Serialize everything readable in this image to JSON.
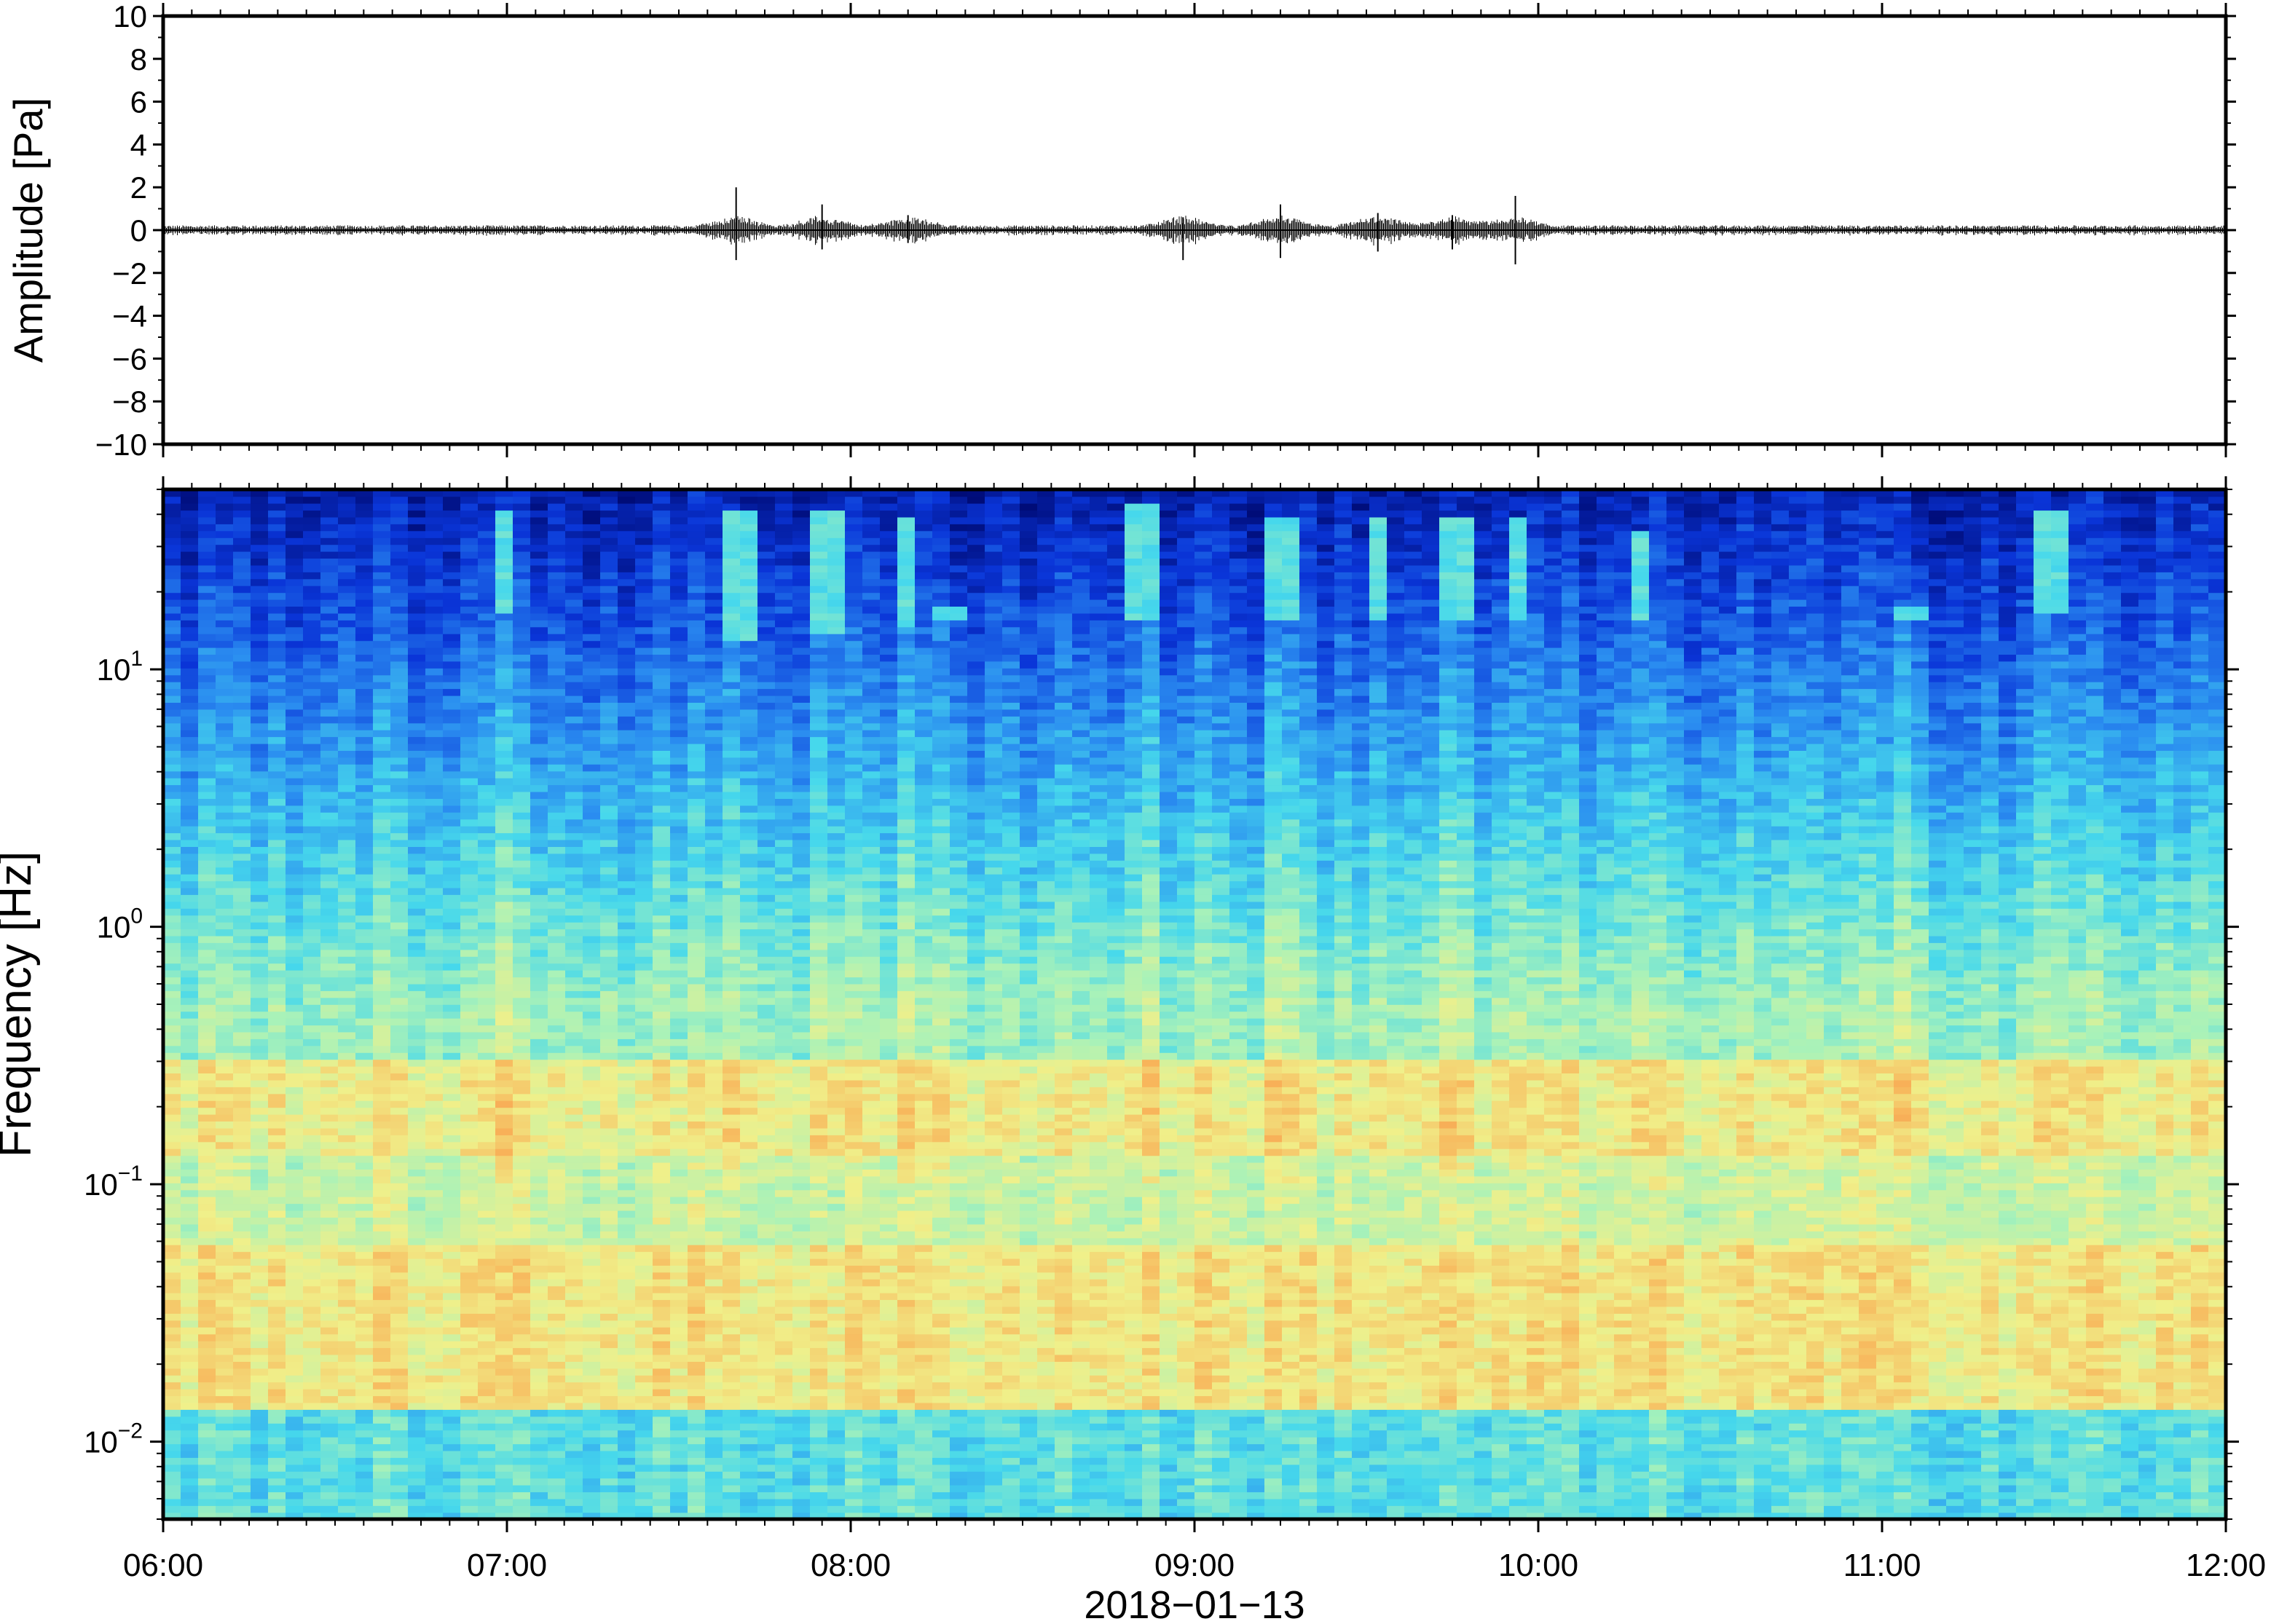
{
  "chart_data": [
    {
      "type": "line",
      "panel": "waveform",
      "ylabel": "Amplitude [Pa]",
      "ylim": [
        -10,
        10
      ],
      "y_ticks": [
        10,
        8,
        6,
        4,
        2,
        0,
        -2,
        -4,
        -6,
        -8,
        -10
      ],
      "y_tick_labels": [
        "10",
        "8",
        "6",
        "4",
        "2",
        "0",
        "−2",
        "−4",
        "−6",
        "−8",
        "−10"
      ],
      "x_range": [
        "06:00",
        "12:00"
      ],
      "baseline_noise_amplitude": 0.15,
      "line_color": "#000000",
      "bursts": [
        {
          "time": "07:40",
          "y_max": 2.0,
          "y_min": -1.4
        },
        {
          "time": "07:55",
          "y_max": 1.2,
          "y_min": -0.9
        },
        {
          "time": "08:10",
          "y_max": 0.7,
          "y_min": -0.6
        },
        {
          "time": "08:58",
          "y_max": 0.6,
          "y_min": -1.4
        },
        {
          "time": "09:15",
          "y_max": 1.2,
          "y_min": -1.3
        },
        {
          "time": "09:32",
          "y_max": 0.8,
          "y_min": -1.0
        },
        {
          "time": "09:45",
          "y_max": 0.7,
          "y_min": -0.9
        },
        {
          "time": "09:56",
          "y_max": 1.6,
          "y_min": -1.6
        }
      ]
    },
    {
      "type": "heatmap",
      "panel": "spectrogram",
      "ylabel": "Frequency [Hz]",
      "xlabel": "2018−01−13",
      "y_scale": "log",
      "ylim": [
        0.005,
        50
      ],
      "y_ticks": [
        0.01,
        0.1,
        1,
        10
      ],
      "y_tick_labels": [
        {
          "base": "10",
          "exp": "−2"
        },
        {
          "base": "10",
          "exp": "−1"
        },
        {
          "base": "10",
          "exp": "0"
        },
        {
          "base": "10",
          "exp": "1"
        }
      ],
      "x_tick_labels": [
        "06:00",
        "07:00",
        "08:00",
        "09:00",
        "10:00",
        "11:00",
        "12:00"
      ],
      "colormap": [
        "#000c78",
        "#0a35d8",
        "#2a8cf0",
        "#46d8ec",
        "#aaf2b8",
        "#f0f08a",
        "#f8b45a",
        "#f06a38"
      ],
      "high_frequency_bursts": [
        {
          "time": "07:00",
          "freq": [
            17,
            42
          ]
        },
        {
          "time": "07:40",
          "freq": [
            13,
            42
          ]
        },
        {
          "time": "07:55",
          "freq": [
            14,
            42
          ]
        },
        {
          "time": "08:10",
          "freq": [
            15,
            40
          ]
        },
        {
          "time": "08:18",
          "freq": [
            16,
            18
          ]
        },
        {
          "time": "08:50",
          "freq": [
            16,
            44
          ]
        },
        {
          "time": "09:15",
          "freq": [
            16,
            40
          ]
        },
        {
          "time": "09:32",
          "freq": [
            16,
            40
          ]
        },
        {
          "time": "09:45",
          "freq": [
            16,
            40
          ]
        },
        {
          "time": "09:56",
          "freq": [
            16,
            40
          ]
        },
        {
          "time": "10:18",
          "freq": [
            16,
            35
          ]
        },
        {
          "time": "11:05",
          "freq": [
            16,
            18
          ]
        },
        {
          "time": "11:30",
          "freq": [
            17,
            42
          ]
        }
      ]
    }
  ]
}
